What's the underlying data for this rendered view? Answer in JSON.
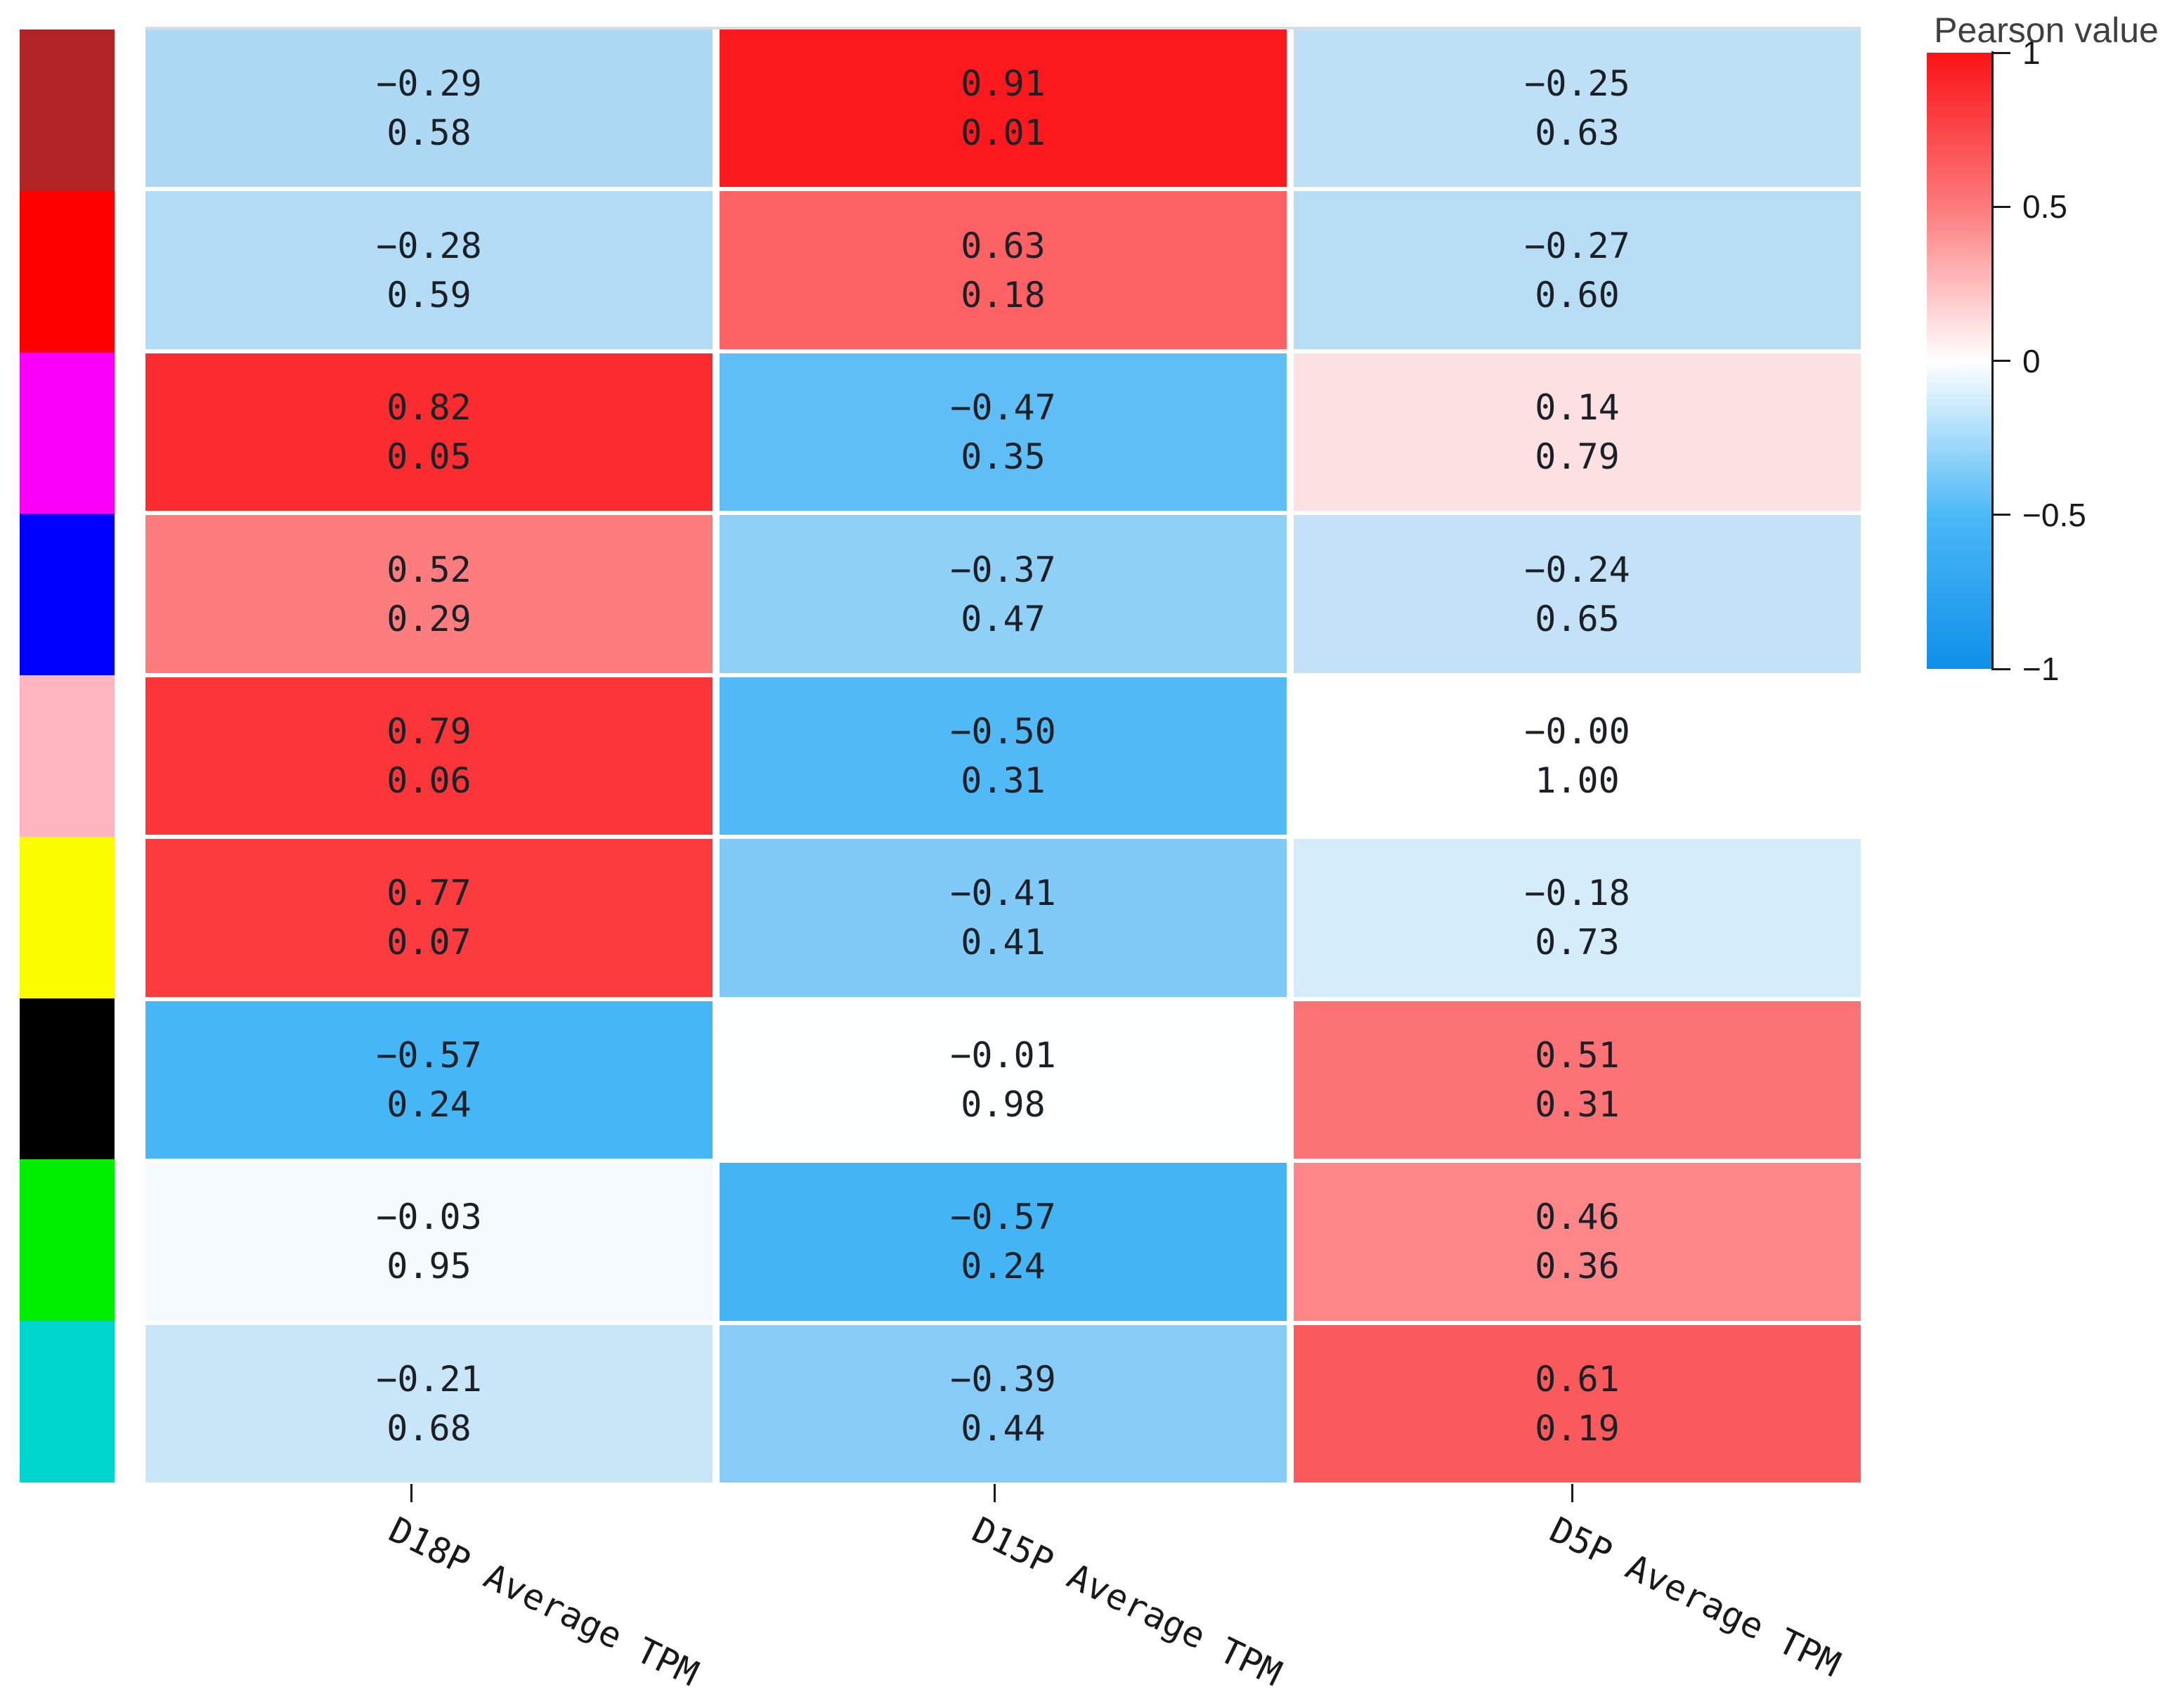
{
  "chart_data": {
    "type": "heatmap",
    "description": "Pearson correlation heatmap; each cell shows Pearson r (top) and p-value (bottom)",
    "columns": [
      "D18P Average TPM",
      "D15P Average TPM",
      "D5P Average TPM"
    ],
    "legend_position": "right",
    "grid": "off",
    "xlabel": "",
    "ylabel": "",
    "colorbar": {
      "title": "Pearson value",
      "ticks": [
        "1",
        "0.5",
        "0",
        "−0.5",
        "−1"
      ],
      "range": [
        -1,
        1
      ],
      "gradient_stops": [
        {
          "at": "0%",
          "color": "#fa1215"
        },
        {
          "at": "25%",
          "color": "#fc7a7c"
        },
        {
          "at": "50%",
          "color": "#ffffff"
        },
        {
          "at": "75%",
          "color": "#4cb8f6"
        },
        {
          "at": "100%",
          "color": "#0e8fe8"
        }
      ]
    },
    "rows": [
      {
        "swatch_color": "#b22426",
        "cells": [
          {
            "value": -0.29,
            "p": 0.58,
            "label": "−0.29",
            "p_label": "0.58",
            "bg": "#aed9f4"
          },
          {
            "value": 0.91,
            "p": 0.01,
            "label": "0.91",
            "p_label": "0.01",
            "bg": "#fa1a1d"
          },
          {
            "value": -0.25,
            "p": 0.63,
            "label": "−0.25",
            "p_label": "0.63",
            "bg": "#bee0f6"
          }
        ]
      },
      {
        "swatch_color": "#fe0000",
        "cells": [
          {
            "value": -0.28,
            "p": 0.59,
            "label": "−0.28",
            "p_label": "0.59",
            "bg": "#b2dbf5"
          },
          {
            "value": 0.63,
            "p": 0.18,
            "label": "0.63",
            "p_label": "0.18",
            "bg": "#fc6164"
          },
          {
            "value": -0.27,
            "p": 0.6,
            "label": "−0.27",
            "p_label": "0.60",
            "bg": "#b8def6"
          }
        ]
      },
      {
        "swatch_color": "#fa00fa",
        "cells": [
          {
            "value": 0.82,
            "p": 0.05,
            "label": "0.82",
            "p_label": "0.05",
            "bg": "#fa2c2f"
          },
          {
            "value": -0.47,
            "p": 0.35,
            "label": "−0.47",
            "p_label": "0.35",
            "bg": "#5fbef6"
          },
          {
            "value": 0.14,
            "p": 0.79,
            "label": "0.14",
            "p_label": "0.79",
            "bg": "#fde0e2"
          }
        ]
      },
      {
        "swatch_color": "#0000fe",
        "cells": [
          {
            "value": 0.52,
            "p": 0.29,
            "label": "0.52",
            "p_label": "0.29",
            "bg": "#fd7c7e"
          },
          {
            "value": -0.37,
            "p": 0.47,
            "label": "−0.37",
            "p_label": "0.47",
            "bg": "#8fd0f7"
          },
          {
            "value": -0.24,
            "p": 0.65,
            "label": "−0.24",
            "p_label": "0.65",
            "bg": "#c3e2f7"
          }
        ]
      },
      {
        "swatch_color": "#ffb5c0",
        "cells": [
          {
            "value": 0.79,
            "p": 0.06,
            "label": "0.79",
            "p_label": "0.06",
            "bg": "#fb3538"
          },
          {
            "value": -0.5,
            "p": 0.31,
            "label": "−0.50",
            "p_label": "0.31",
            "bg": "#50b9f6"
          },
          {
            "value": -0.0,
            "p": 1.0,
            "label": "−0.00",
            "p_label": "1.00",
            "bg": "#ffffff"
          }
        ]
      },
      {
        "swatch_color": "#fcfc00",
        "cells": [
          {
            "value": 0.77,
            "p": 0.07,
            "label": "0.77",
            "p_label": "0.07",
            "bg": "#fb3b3e"
          },
          {
            "value": -0.41,
            "p": 0.41,
            "label": "−0.41",
            "p_label": "0.41",
            "bg": "#80caf7"
          },
          {
            "value": -0.18,
            "p": 0.73,
            "label": "−0.18",
            "p_label": "0.73",
            "bg": "#d5ecfa"
          }
        ]
      },
      {
        "swatch_color": "#000000",
        "cells": [
          {
            "value": -0.57,
            "p": 0.24,
            "label": "−0.57",
            "p_label": "0.24",
            "bg": "#45b7f7"
          },
          {
            "value": -0.01,
            "p": 0.98,
            "label": "−0.01",
            "p_label": "0.98",
            "bg": "#fcfeff"
          },
          {
            "value": 0.51,
            "p": 0.31,
            "label": "0.51",
            "p_label": "0.31",
            "bg": "#fc7376"
          }
        ]
      },
      {
        "swatch_color": "#00ef00",
        "cells": [
          {
            "value": -0.03,
            "p": 0.95,
            "label": "−0.03",
            "p_label": "0.95",
            "bg": "#f5fafe"
          },
          {
            "value": -0.57,
            "p": 0.24,
            "label": "−0.57",
            "p_label": "0.24",
            "bg": "#43b5f5"
          },
          {
            "value": 0.46,
            "p": 0.36,
            "label": "0.46",
            "p_label": "0.36",
            "bg": "#fc8688"
          }
        ]
      },
      {
        "swatch_color": "#00d5cd",
        "cells": [
          {
            "value": -0.21,
            "p": 0.68,
            "label": "−0.21",
            "p_label": "0.68",
            "bg": "#c9e5f8"
          },
          {
            "value": -0.39,
            "p": 0.44,
            "label": "−0.39",
            "p_label": "0.44",
            "bg": "#86ccf6"
          },
          {
            "value": 0.61,
            "p": 0.19,
            "label": "0.61",
            "p_label": "0.19",
            "bg": "#fb5a5d"
          }
        ]
      }
    ]
  }
}
